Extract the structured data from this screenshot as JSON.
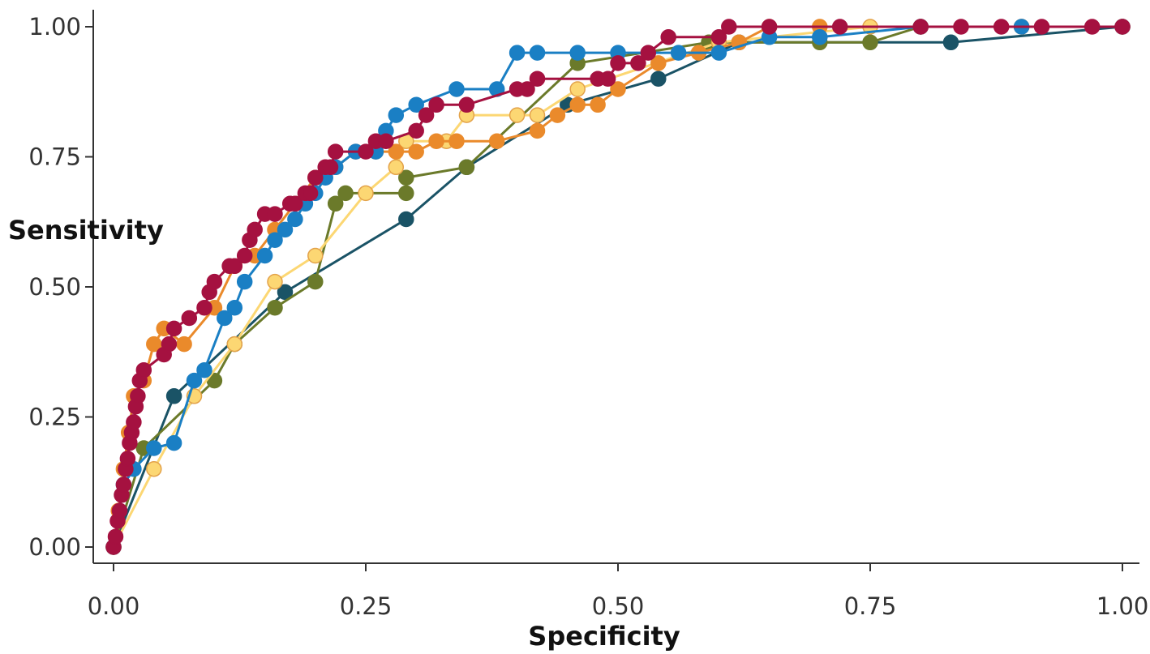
{
  "chart_data": {
    "type": "line",
    "title": "",
    "xlabel": "Specificity",
    "ylabel": "Sensitivity",
    "xlim": [
      0,
      1
    ],
    "ylim": [
      0,
      1
    ],
    "x_ticks": [
      "0.00",
      "0.25",
      "0.50",
      "0.75",
      "1.00"
    ],
    "y_ticks": [
      "0.00",
      "0.25",
      "0.50",
      "0.75",
      "1.00"
    ],
    "grid": false,
    "legend": "none",
    "series": [
      {
        "color": "#1a5366",
        "x": [
          0,
          0.06,
          0.17,
          0.29,
          0.35,
          0.45,
          0.54,
          0.62,
          0.83,
          1.0
        ],
        "y": [
          0,
          0.29,
          0.49,
          0.63,
          0.73,
          0.85,
          0.9,
          0.97,
          0.97,
          1.0
        ]
      },
      {
        "color": "#6b7a2a",
        "x": [
          0,
          0.03,
          0.1,
          0.12,
          0.16,
          0.2,
          0.22,
          0.23,
          0.29,
          0.29,
          0.35,
          0.46,
          0.59,
          0.7,
          0.75,
          0.8,
          1.0
        ],
        "y": [
          0,
          0.19,
          0.32,
          0.39,
          0.46,
          0.51,
          0.66,
          0.68,
          0.68,
          0.71,
          0.73,
          0.93,
          0.97,
          0.97,
          0.97,
          1.0,
          1.0
        ]
      },
      {
        "color": "#fcd773",
        "x": [
          0,
          0.04,
          0.08,
          0.12,
          0.16,
          0.2,
          0.25,
          0.28,
          0.29,
          0.33,
          0.35,
          0.4,
          0.42,
          0.46,
          0.6,
          0.75,
          0.9,
          1.0
        ],
        "y": [
          0,
          0.15,
          0.29,
          0.39,
          0.51,
          0.56,
          0.68,
          0.73,
          0.78,
          0.78,
          0.83,
          0.83,
          0.83,
          0.88,
          0.97,
          1.0,
          1.0,
          1.0
        ]
      },
      {
        "color": "#ea8a2b",
        "x": [
          0,
          0.005,
          0.01,
          0.015,
          0.02,
          0.03,
          0.04,
          0.05,
          0.07,
          0.1,
          0.12,
          0.14,
          0.16,
          0.18,
          0.2,
          0.22,
          0.24,
          0.26,
          0.28,
          0.3,
          0.32,
          0.34,
          0.38,
          0.42,
          0.44,
          0.46,
          0.48,
          0.5,
          0.54,
          0.58,
          0.62,
          0.65,
          0.7,
          0.8,
          0.9,
          1.0
        ],
        "y": [
          0,
          0.07,
          0.15,
          0.22,
          0.29,
          0.32,
          0.39,
          0.42,
          0.39,
          0.46,
          0.54,
          0.56,
          0.61,
          0.66,
          0.71,
          0.73,
          0.76,
          0.76,
          0.76,
          0.76,
          0.78,
          0.78,
          0.78,
          0.8,
          0.83,
          0.85,
          0.85,
          0.88,
          0.93,
          0.95,
          0.97,
          1.0,
          1.0,
          1.0,
          1.0,
          1.0
        ]
      },
      {
        "color": "#1a7fc4",
        "x": [
          0,
          0.01,
          0.02,
          0.04,
          0.06,
          0.08,
          0.09,
          0.11,
          0.12,
          0.13,
          0.15,
          0.16,
          0.17,
          0.18,
          0.19,
          0.2,
          0.21,
          0.22,
          0.24,
          0.26,
          0.27,
          0.28,
          0.3,
          0.34,
          0.38,
          0.4,
          0.42,
          0.46,
          0.5,
          0.56,
          0.6,
          0.65,
          0.7,
          0.8,
          0.9,
          1.0
        ],
        "y": [
          0,
          0.12,
          0.15,
          0.19,
          0.2,
          0.32,
          0.34,
          0.44,
          0.46,
          0.51,
          0.56,
          0.59,
          0.61,
          0.63,
          0.66,
          0.68,
          0.71,
          0.73,
          0.76,
          0.76,
          0.8,
          0.83,
          0.85,
          0.88,
          0.88,
          0.95,
          0.95,
          0.95,
          0.95,
          0.95,
          0.95,
          0.98,
          0.98,
          1.0,
          1.0,
          1.0
        ]
      },
      {
        "color": "#a51140",
        "x": [
          0,
          0.002,
          0.004,
          0.006,
          0.008,
          0.01,
          0.012,
          0.014,
          0.016,
          0.018,
          0.02,
          0.022,
          0.024,
          0.026,
          0.03,
          0.05,
          0.055,
          0.06,
          0.075,
          0.09,
          0.095,
          0.1,
          0.115,
          0.12,
          0.13,
          0.135,
          0.14,
          0.15,
          0.16,
          0.175,
          0.18,
          0.19,
          0.195,
          0.2,
          0.21,
          0.215,
          0.22,
          0.25,
          0.26,
          0.27,
          0.3,
          0.31,
          0.32,
          0.35,
          0.4,
          0.41,
          0.42,
          0.48,
          0.49,
          0.5,
          0.52,
          0.53,
          0.55,
          0.6,
          0.61,
          0.65,
          0.72,
          0.8,
          0.84,
          0.88,
          0.92,
          0.97,
          1.0
        ],
        "y": [
          0,
          0.02,
          0.05,
          0.07,
          0.1,
          0.12,
          0.15,
          0.17,
          0.2,
          0.22,
          0.24,
          0.27,
          0.29,
          0.32,
          0.34,
          0.37,
          0.39,
          0.42,
          0.44,
          0.46,
          0.49,
          0.51,
          0.54,
          0.54,
          0.56,
          0.59,
          0.61,
          0.64,
          0.64,
          0.66,
          0.66,
          0.68,
          0.68,
          0.71,
          0.73,
          0.73,
          0.76,
          0.76,
          0.78,
          0.78,
          0.8,
          0.83,
          0.85,
          0.85,
          0.88,
          0.88,
          0.9,
          0.9,
          0.9,
          0.93,
          0.93,
          0.95,
          0.98,
          0.98,
          1.0,
          1.0,
          1.0,
          1.0,
          1.0,
          1.0,
          1.0,
          1.0,
          1.0
        ]
      }
    ]
  }
}
